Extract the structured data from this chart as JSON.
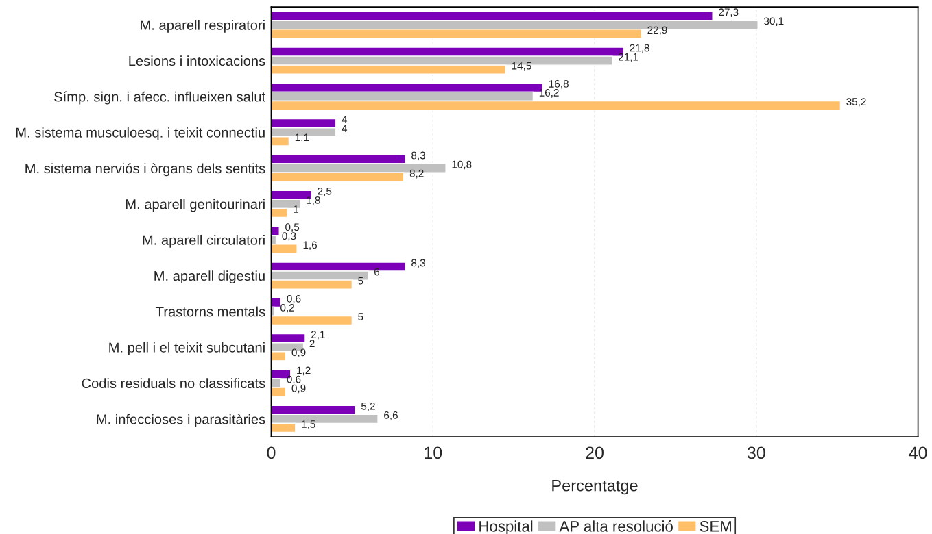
{
  "chart_data": {
    "type": "bar",
    "orientation": "horizontal",
    "xlabel": "Percentatge",
    "categories": [
      "M. aparell respiratori",
      "Lesions i intoxicacions",
      "Símp. sign. i afecc. influeixen salut",
      "M. sistema musculoesq. i teixit connectiu",
      "M. sistema nerviós i òrgans dels sentits",
      "M. aparell genitourinari",
      "M. aparell circulatori",
      "M. aparell digestiu",
      "Trastorns mentals",
      "M. pell i el teixit subcutani",
      "Codis residuals no classificats",
      "M. infeccioses i parasitàries"
    ],
    "series": [
      {
        "name": "Hospital",
        "color": "#7b00b8",
        "values": [
          27.3,
          21.8,
          16.8,
          4,
          8.3,
          2.5,
          0.5,
          8.3,
          0.6,
          2.1,
          1.2,
          5.2
        ],
        "value_labels": [
          "27,3",
          "21,8",
          "16,8",
          "4",
          "8,3",
          "2,5",
          "0,5",
          "8,3",
          "0,6",
          "2,1",
          "1,2",
          "5,2"
        ]
      },
      {
        "name": "AP alta resolució",
        "color": "#c0c0c0",
        "values": [
          30.1,
          21.1,
          16.2,
          4,
          10.8,
          1.8,
          0.3,
          6,
          0.2,
          2,
          0.6,
          6.6
        ],
        "value_labels": [
          "30,1",
          "21,1",
          "16,2",
          "4",
          "10,8",
          "1,8",
          "0,3",
          "6",
          "0,2",
          "2",
          "0,6",
          "6,6"
        ]
      },
      {
        "name": "SEM",
        "color": "#ffbf69",
        "values": [
          22.9,
          14.5,
          35.2,
          1.1,
          8.2,
          1,
          1.6,
          5,
          5,
          0.9,
          0.9,
          1.5
        ],
        "value_labels": [
          "22,9",
          "14,5",
          "35,2",
          "1,1",
          "8,2",
          "1",
          "1,6",
          "5",
          "5",
          "0,9",
          "0,9",
          "1,5"
        ]
      }
    ],
    "xlim": [
      0,
      40
    ],
    "xticks": [
      0,
      10,
      20,
      30,
      40
    ],
    "grid": "x",
    "legend": "bottom"
  }
}
